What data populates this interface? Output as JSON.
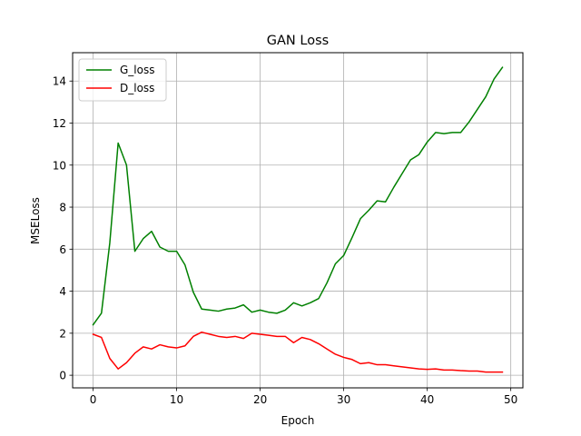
{
  "chart_data": {
    "type": "line",
    "title": "GAN Loss",
    "xlabel": "Epoch",
    "ylabel": "MSELoss",
    "xlim": [
      -2.45,
      51.45
    ],
    "ylim": [
      -0.6,
      15.35
    ],
    "xticks": [
      0,
      10,
      20,
      30,
      40,
      50
    ],
    "yticks": [
      0,
      2,
      4,
      6,
      8,
      10,
      12,
      14
    ],
    "grid": true,
    "legend_position": "top-left",
    "x": [
      0,
      1,
      2,
      3,
      4,
      5,
      6,
      7,
      8,
      9,
      10,
      11,
      12,
      13,
      14,
      15,
      16,
      17,
      18,
      19,
      20,
      21,
      22,
      23,
      24,
      25,
      26,
      27,
      28,
      29,
      30,
      31,
      32,
      33,
      34,
      35,
      36,
      37,
      38,
      39,
      40,
      41,
      42,
      43,
      44,
      45,
      46,
      47,
      48,
      49
    ],
    "series": [
      {
        "name": "G_loss",
        "color": "#008000",
        "values": [
          2.4,
          2.95,
          6.3,
          11.05,
          10.0,
          5.9,
          6.5,
          6.85,
          6.1,
          5.9,
          5.9,
          5.25,
          3.95,
          3.15,
          3.1,
          3.05,
          3.15,
          3.2,
          3.35,
          3.0,
          3.1,
          3.0,
          2.95,
          3.1,
          3.45,
          3.3,
          3.45,
          3.65,
          4.4,
          5.3,
          5.7,
          6.55,
          7.45,
          7.85,
          8.3,
          8.25,
          8.95,
          9.6,
          10.25,
          10.5,
          11.1,
          11.55,
          11.5,
          11.55,
          11.55,
          12.05,
          12.65,
          13.25,
          14.1,
          14.65
        ]
      },
      {
        "name": "D_loss",
        "color": "#ff0000",
        "values": [
          1.95,
          1.8,
          0.8,
          0.3,
          0.6,
          1.05,
          1.35,
          1.25,
          1.45,
          1.35,
          1.3,
          1.4,
          1.85,
          2.05,
          1.95,
          1.85,
          1.8,
          1.85,
          1.75,
          2.0,
          1.95,
          1.9,
          1.85,
          1.85,
          1.55,
          1.8,
          1.7,
          1.5,
          1.25,
          1.0,
          0.85,
          0.75,
          0.55,
          0.6,
          0.5,
          0.5,
          0.45,
          0.4,
          0.35,
          0.3,
          0.28,
          0.3,
          0.25,
          0.25,
          0.22,
          0.2,
          0.2,
          0.15,
          0.15,
          0.15
        ]
      }
    ]
  }
}
